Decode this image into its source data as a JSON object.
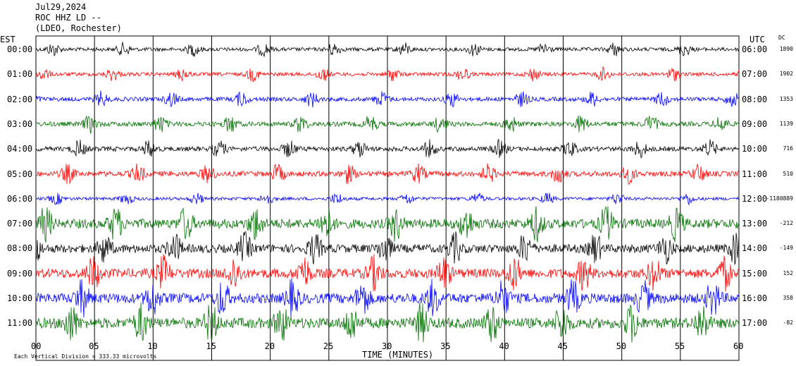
{
  "header": {
    "date": "Jul29,2024",
    "station": "ROC HHZ LD --",
    "location": "(LDEO, Rochester)"
  },
  "chart_data": {
    "type": "line",
    "left_axis_label": "EST",
    "right_axis_label": "UTC",
    "dc_label": "DC",
    "xlabel": "TIME (MINUTES)",
    "xlim": [
      0,
      60
    ],
    "x_ticks": [
      "00",
      "05",
      "10",
      "15",
      "20",
      "25",
      "30",
      "35",
      "40",
      "45",
      "50",
      "55",
      "60"
    ],
    "scale_note": "Each Vertical Division = 333.33 microvolts",
    "trace_colors": [
      "#000000",
      "#ff0000",
      "#0000ff",
      "#007000"
    ],
    "rows": [
      {
        "est": "00:00",
        "utc": "06:00",
        "dc": "1890",
        "amp": 0.35
      },
      {
        "est": "01:00",
        "utc": "07:00",
        "dc": "1902",
        "amp": 0.35
      },
      {
        "est": "02:00",
        "utc": "08:00",
        "dc": "1353",
        "amp": 0.4
      },
      {
        "est": "03:00",
        "utc": "09:00",
        "dc": "1139",
        "amp": 0.45
      },
      {
        "est": "04:00",
        "utc": "10:00",
        "dc": "716",
        "amp": 0.45
      },
      {
        "est": "05:00",
        "utc": "11:00",
        "dc": "510",
        "amp": 0.5
      },
      {
        "est": "06:00",
        "utc": "12:00",
        "dc": "-1180889",
        "amp": 0.3
      },
      {
        "est": "07:00",
        "utc": "13:00",
        "dc": "-212",
        "amp": 0.9
      },
      {
        "est": "08:00",
        "utc": "14:00",
        "dc": "-149",
        "amp": 0.8
      },
      {
        "est": "09:00",
        "utc": "15:00",
        "dc": "152",
        "amp": 0.9
      },
      {
        "est": "10:00",
        "utc": "16:00",
        "dc": "358",
        "amp": 0.95
      },
      {
        "est": "11:00",
        "utc": "17:00",
        "dc": "-82",
        "amp": 1.0
      }
    ]
  }
}
